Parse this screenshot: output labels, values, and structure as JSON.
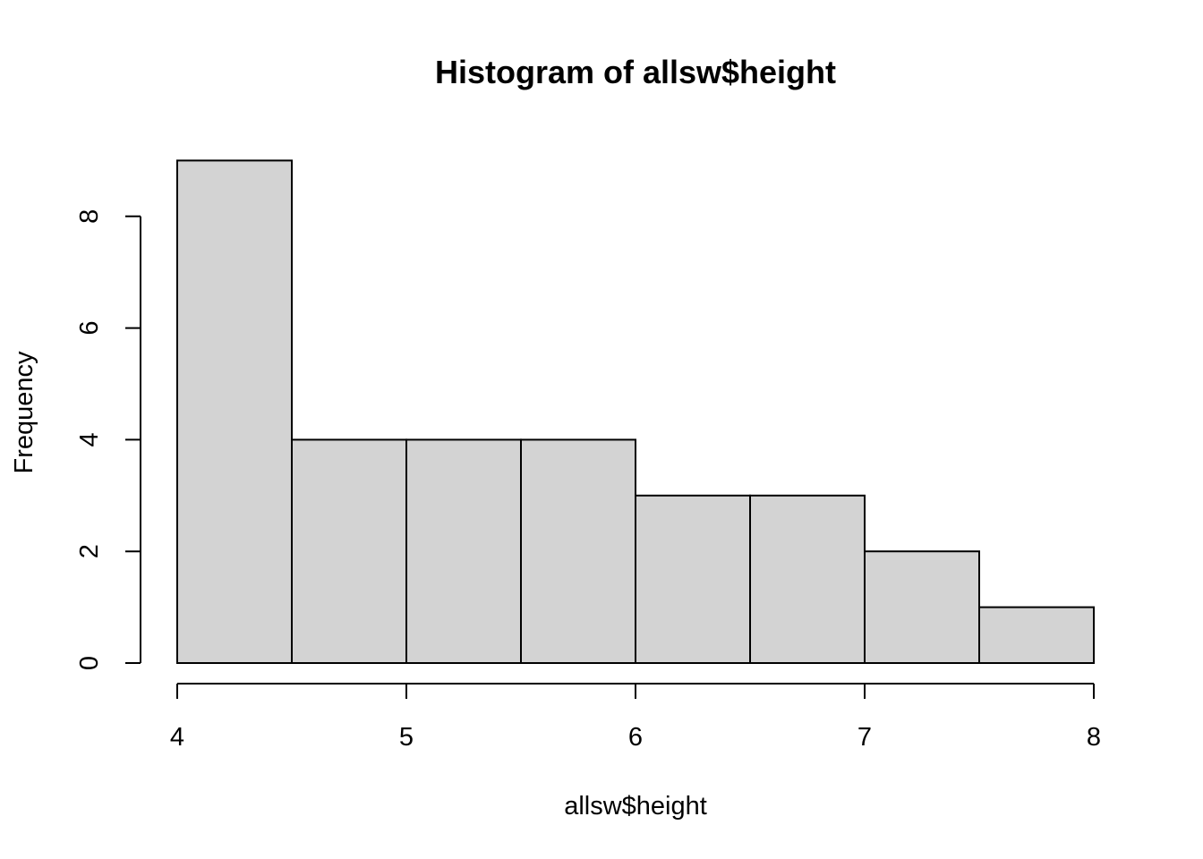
{
  "chart_data": {
    "type": "bar",
    "subtype": "histogram",
    "title": "Histogram of allsw$height",
    "xlabel": "allsw$height",
    "ylabel": "Frequency",
    "bins": [
      {
        "start": 4.0,
        "end": 4.5,
        "count": 9
      },
      {
        "start": 4.5,
        "end": 5.0,
        "count": 4
      },
      {
        "start": 5.0,
        "end": 5.5,
        "count": 4
      },
      {
        "start": 5.5,
        "end": 6.0,
        "count": 4
      },
      {
        "start": 6.0,
        "end": 6.5,
        "count": 3
      },
      {
        "start": 6.5,
        "end": 7.0,
        "count": 3
      },
      {
        "start": 7.0,
        "end": 7.5,
        "count": 2
      },
      {
        "start": 7.5,
        "end": 8.0,
        "count": 1
      }
    ],
    "xlim": [
      4,
      8
    ],
    "ylim": [
      0,
      9
    ],
    "xticks": [
      4,
      5,
      6,
      7,
      8
    ],
    "yticks": [
      0,
      2,
      4,
      6,
      8
    ],
    "grid": false,
    "legend": "none",
    "colors": {
      "bar_fill": "#d3d3d3",
      "bar_stroke": "#000000"
    }
  }
}
